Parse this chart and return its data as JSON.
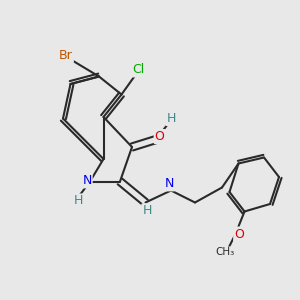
{
  "background_color": "#e8e8e8",
  "bond_color": "#2a2a2a",
  "bond_width": 1.5,
  "atom_colors": {
    "C": "#2a2a2a",
    "N": "#0000ee",
    "O": "#dd0000",
    "Br": "#bb5500",
    "Cl": "#00aa00",
    "H": "#408888"
  },
  "figsize": [
    3.0,
    3.0
  ],
  "dpi": 100
}
